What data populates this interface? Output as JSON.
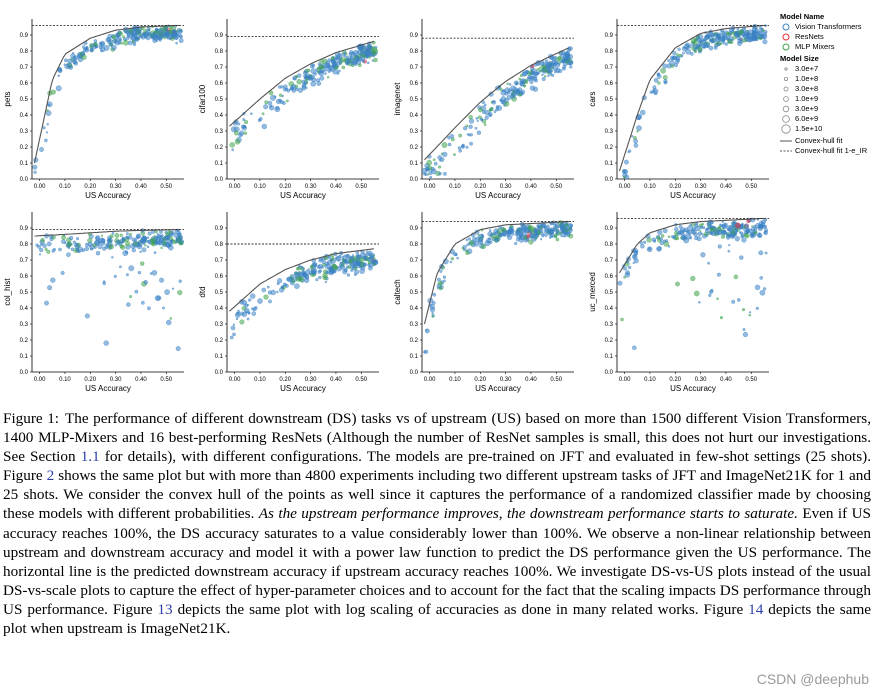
{
  "colors": {
    "vit": "#3b82c4",
    "resnet": "#e0303a",
    "mixer": "#3fa34d",
    "fit": "#555555"
  },
  "legend": {
    "title_name": "Model Name",
    "names": [
      "Vision Transformers",
      "ResNets",
      "MLP Mixers"
    ],
    "title_size": "Model Size",
    "sizes": [
      "3.0e+7",
      "1.0e+8",
      "3.0e+8",
      "1.0e+9",
      "3.0e+9",
      "6.0e+9",
      "1.5e+10"
    ],
    "fit_solid": "Convex-hull fit",
    "fit_dashed": "Convex-hull fit 1-e_IR"
  },
  "chart_data": [
    {
      "type": "scatter",
      "ylabel": "pets",
      "xlabel": "US Accuracy",
      "xlim": [
        -0.03,
        0.57
      ],
      "ylim": [
        0,
        1
      ],
      "xticks": [
        "0.00",
        "0.10",
        "0.20",
        "0.30",
        "0.40",
        "0.50"
      ],
      "yticks": [
        "0.0",
        "0.1",
        "0.2",
        "0.3",
        "0.4",
        "0.5",
        "0.6",
        "0.7",
        "0.8",
        "0.9"
      ],
      "saturation": 0.96,
      "fit": [
        [
          -0.02,
          0.1
        ],
        [
          0.05,
          0.62
        ],
        [
          0.1,
          0.78
        ],
        [
          0.2,
          0.88
        ],
        [
          0.3,
          0.93
        ],
        [
          0.4,
          0.95
        ],
        [
          0.55,
          0.96
        ]
      ]
    },
    {
      "type": "scatter",
      "ylabel": "cifar100",
      "xlabel": "US Accuracy",
      "xlim": [
        -0.03,
        0.57
      ],
      "ylim": [
        0,
        1
      ],
      "xticks": [
        "0.00",
        "0.10",
        "0.20",
        "0.30",
        "0.40",
        "0.50"
      ],
      "yticks": [
        "0.0",
        "0.1",
        "0.2",
        "0.3",
        "0.4",
        "0.5",
        "0.6",
        "0.7",
        "0.8",
        "0.9"
      ],
      "saturation": 0.89,
      "fit": [
        [
          -0.02,
          0.33
        ],
        [
          0.1,
          0.5
        ],
        [
          0.2,
          0.63
        ],
        [
          0.3,
          0.72
        ],
        [
          0.4,
          0.79
        ],
        [
          0.55,
          0.86
        ]
      ]
    },
    {
      "type": "scatter",
      "ylabel": "imagenet",
      "xlabel": "US Accuracy",
      "xlim": [
        -0.03,
        0.57
      ],
      "ylim": [
        0,
        1
      ],
      "xticks": [
        "0.00",
        "0.10",
        "0.20",
        "0.30",
        "0.40",
        "0.50"
      ],
      "yticks": [
        "0.0",
        "0.1",
        "0.2",
        "0.3",
        "0.4",
        "0.5",
        "0.6",
        "0.7",
        "0.8",
        "0.9"
      ],
      "saturation": 0.88,
      "fit": [
        [
          -0.02,
          0.12
        ],
        [
          0.1,
          0.32
        ],
        [
          0.2,
          0.48
        ],
        [
          0.3,
          0.61
        ],
        [
          0.4,
          0.71
        ],
        [
          0.55,
          0.82
        ]
      ]
    },
    {
      "type": "scatter",
      "ylabel": "cars",
      "xlabel": "US Accuracy",
      "xlim": [
        -0.03,
        0.57
      ],
      "ylim": [
        0,
        1
      ],
      "xticks": [
        "0.00",
        "0.10",
        "0.20",
        "0.30",
        "0.40",
        "0.50"
      ],
      "yticks": [
        "0.0",
        "0.1",
        "0.2",
        "0.3",
        "0.4",
        "0.5",
        "0.6",
        "0.7",
        "0.8",
        "0.9"
      ],
      "saturation": 0.96,
      "fit": [
        [
          -0.02,
          0.05
        ],
        [
          0.05,
          0.4
        ],
        [
          0.1,
          0.62
        ],
        [
          0.2,
          0.82
        ],
        [
          0.3,
          0.91
        ],
        [
          0.4,
          0.94
        ],
        [
          0.55,
          0.96
        ]
      ]
    },
    {
      "type": "scatter",
      "ylabel": "col_hist",
      "xlabel": "US Accuracy",
      "xlim": [
        -0.03,
        0.57
      ],
      "ylim": [
        0,
        1
      ],
      "xticks": [
        "0.00",
        "0.10",
        "0.20",
        "0.30",
        "0.40",
        "0.50"
      ],
      "yticks": [
        "0.0",
        "0.1",
        "0.2",
        "0.3",
        "0.4",
        "0.5",
        "0.6",
        "0.7",
        "0.8",
        "0.9"
      ],
      "saturation": 0.89,
      "fit": [
        [
          -0.02,
          0.85
        ],
        [
          0.1,
          0.86
        ],
        [
          0.2,
          0.87
        ],
        [
          0.3,
          0.88
        ],
        [
          0.4,
          0.885
        ],
        [
          0.55,
          0.89
        ]
      ]
    },
    {
      "type": "scatter",
      "ylabel": "dtd",
      "xlabel": "US Accuracy",
      "xlim": [
        -0.03,
        0.57
      ],
      "ylim": [
        0,
        1
      ],
      "xticks": [
        "0.00",
        "0.10",
        "0.20",
        "0.30",
        "0.40",
        "0.50"
      ],
      "yticks": [
        "0.0",
        "0.1",
        "0.2",
        "0.3",
        "0.4",
        "0.5",
        "0.6",
        "0.7",
        "0.8",
        "0.9"
      ],
      "saturation": 0.8,
      "fit": [
        [
          -0.02,
          0.38
        ],
        [
          0.1,
          0.55
        ],
        [
          0.2,
          0.64
        ],
        [
          0.3,
          0.7
        ],
        [
          0.4,
          0.74
        ],
        [
          0.55,
          0.77
        ]
      ]
    },
    {
      "type": "scatter",
      "ylabel": "caltech",
      "xlabel": "US Accuracy",
      "xlim": [
        -0.03,
        0.57
      ],
      "ylim": [
        0,
        1
      ],
      "xticks": [
        "0.00",
        "0.10",
        "0.20",
        "0.30",
        "0.40",
        "0.50"
      ],
      "yticks": [
        "0.0",
        "0.1",
        "0.2",
        "0.3",
        "0.4",
        "0.5",
        "0.6",
        "0.7",
        "0.8",
        "0.9"
      ],
      "saturation": 0.94,
      "fit": [
        [
          -0.02,
          0.3
        ],
        [
          0.03,
          0.62
        ],
        [
          0.1,
          0.8
        ],
        [
          0.2,
          0.89
        ],
        [
          0.3,
          0.92
        ],
        [
          0.55,
          0.94
        ]
      ]
    },
    {
      "type": "scatter",
      "ylabel": "uc_merced",
      "xlabel": "US Accuracy",
      "xlim": [
        -0.03,
        0.57
      ],
      "ylim": [
        0,
        1
      ],
      "xticks": [
        "0.00",
        "0.10",
        "0.20",
        "0.30",
        "0.40",
        "0.50"
      ],
      "yticks": [
        "0.0",
        "0.1",
        "0.2",
        "0.3",
        "0.4",
        "0.5",
        "0.6",
        "0.7",
        "0.8",
        "0.9"
      ],
      "saturation": 0.96,
      "fit": [
        [
          -0.02,
          0.62
        ],
        [
          0.05,
          0.8
        ],
        [
          0.1,
          0.87
        ],
        [
          0.2,
          0.92
        ],
        [
          0.3,
          0.94
        ],
        [
          0.55,
          0.96
        ]
      ]
    }
  ],
  "caption": {
    "label": "Figure 1:",
    "t1": "The performance of different downstream (DS) tasks vs of upstream (US) based on more than 1500 different Vision Transformers, 1400 MLP-Mixers and 16 best-performing ResNets (Although the number of ResNet samples is small, this does not hurt our investigations. See Section ",
    "r1": "1.1",
    "t2": " for details), with different configurations. The models are pre-trained on JFT and evaluated in few-shot settings (25 shots). Figure ",
    "r2": "2",
    "t3": " shows the same plot but with more than 4800 experiments including two different upstream tasks of JFT and ImageNet21K for 1 and 25 shots. We consider the convex hull of the points as well since it captures the performance of a randomized classifier made by choosing these models with different probabilities. ",
    "italic": "As the upstream performance improves, the downstream performance starts to saturate.",
    "t4": " Even if US accuracy reaches 100%, the DS accuracy saturates to a value considerably lower than 100%. We observe a non-linear relationship between upstream and downstream accuracy and model it with a power law function to predict the DS performance given the US performance. The horizontal line is the predicted downstream accuracy if upstream accuracy reaches 100%. We investigate DS-vs-US plots instead of the usual DS-vs-scale plots to capture the effect of hyper-parameter choices and to account for the fact that the scaling impacts DS performance through US performance. Figure ",
    "r3": "13",
    "t5": " depicts the same plot with log scaling of accuracies as done in many related works. Figure ",
    "r4": "14",
    "t6": " depicts the same plot when upstream is ImageNet21K."
  },
  "watermark": "CSDN @deephub"
}
